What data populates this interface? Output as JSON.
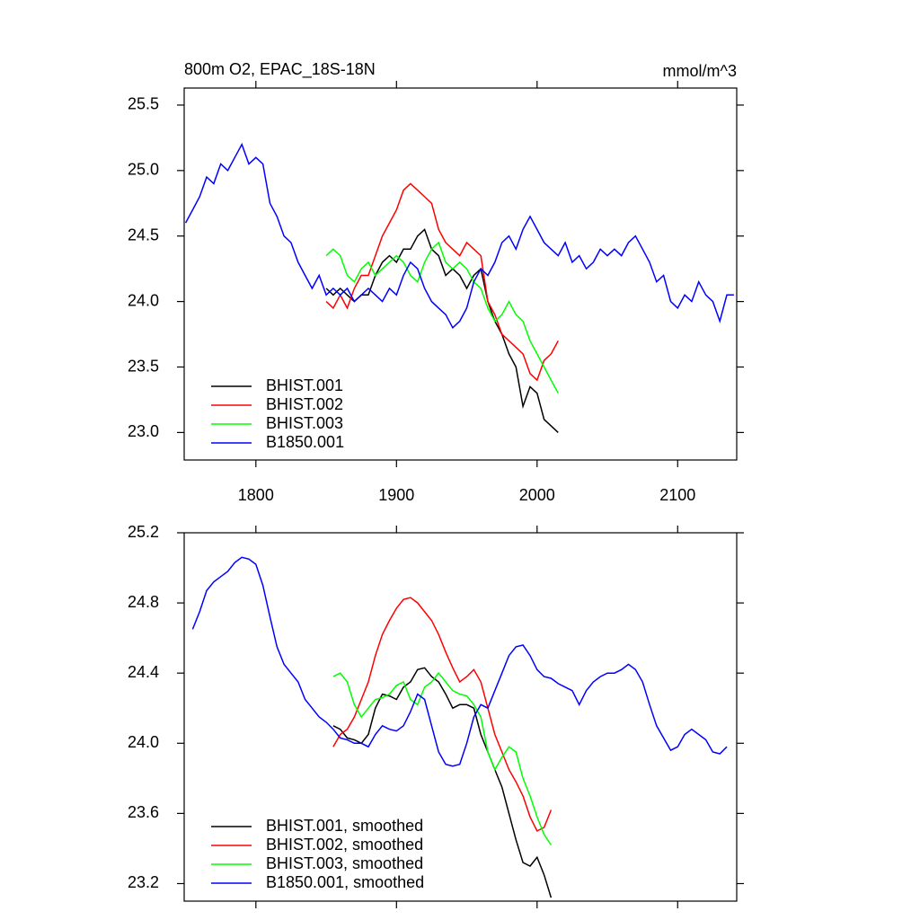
{
  "chart_data": [
    {
      "type": "line",
      "title": "800m O2, EPAC_18S-18N",
      "units_label": "mmol/m^3",
      "xlim": [
        1749,
        2142
      ],
      "xticks": [
        1800,
        1900,
        2000,
        2100
      ],
      "show_xtick_labels": true,
      "ylim": [
        22.79,
        25.63
      ],
      "yticks": [
        25.5,
        {
          "value": 25,
          "label": "25.0"
        },
        24.5,
        {
          "value": 24,
          "label": "24.0"
        },
        23.5,
        {
          "value": 23,
          "label": "23.0"
        }
      ],
      "legend": "lower left",
      "series": [
        {
          "name": "BHIST.001",
          "color": "#000000",
          "x": [
            1850,
            1855,
            1860,
            1865,
            1870,
            1875,
            1880,
            1885,
            1890,
            1895,
            1900,
            1905,
            1910,
            1915,
            1920,
            1925,
            1930,
            1935,
            1940,
            1945,
            1950,
            1955,
            1960,
            1965,
            1970,
            1975,
            1980,
            1985,
            1990,
            1995,
            2000,
            2005,
            2010,
            2015
          ],
          "values": [
            24.1,
            24.05,
            24.1,
            24.05,
            24.0,
            24.05,
            24.05,
            24.2,
            24.3,
            24.35,
            24.3,
            24.4,
            24.4,
            24.5,
            24.55,
            24.4,
            24.35,
            24.2,
            24.25,
            24.2,
            24.1,
            24.2,
            24.25,
            24.0,
            23.85,
            23.75,
            23.6,
            23.5,
            23.2,
            23.35,
            23.3,
            23.1,
            23.05,
            23.0
          ]
        },
        {
          "name": "BHIST.002",
          "color": "#ff0000",
          "x": [
            1850,
            1855,
            1860,
            1865,
            1870,
            1875,
            1880,
            1885,
            1890,
            1895,
            1900,
            1905,
            1910,
            1915,
            1920,
            1925,
            1930,
            1935,
            1940,
            1945,
            1950,
            1955,
            1960,
            1965,
            1970,
            1975,
            1980,
            1985,
            1990,
            1995,
            2000,
            2005,
            2010,
            2015
          ],
          "values": [
            24.0,
            23.95,
            24.05,
            23.95,
            24.1,
            24.2,
            24.2,
            24.35,
            24.5,
            24.6,
            24.7,
            24.85,
            24.9,
            24.85,
            24.8,
            24.75,
            24.55,
            24.45,
            24.4,
            24.35,
            24.45,
            24.4,
            24.35,
            24.0,
            23.9,
            23.75,
            23.7,
            23.65,
            23.6,
            23.45,
            23.4,
            23.55,
            23.6,
            23.7
          ]
        },
        {
          "name": "BHIST.003",
          "color": "#00ff00",
          "x": [
            1850,
            1855,
            1860,
            1865,
            1870,
            1875,
            1880,
            1885,
            1890,
            1895,
            1900,
            1905,
            1910,
            1915,
            1920,
            1925,
            1930,
            1935,
            1940,
            1945,
            1950,
            1955,
            1960,
            1965,
            1970,
            1975,
            1980,
            1985,
            1990,
            1995,
            2000,
            2005,
            2010,
            2015
          ],
          "values": [
            24.35,
            24.4,
            24.35,
            24.2,
            24.15,
            24.25,
            24.3,
            24.2,
            24.25,
            24.3,
            24.35,
            24.3,
            24.2,
            24.15,
            24.3,
            24.4,
            24.45,
            24.3,
            24.25,
            24.3,
            24.25,
            24.15,
            24.1,
            23.95,
            23.85,
            23.9,
            24.0,
            23.9,
            23.85,
            23.7,
            23.6,
            23.5,
            23.4,
            23.3
          ]
        },
        {
          "name": "B1850.001",
          "color": "#0000ff",
          "x": [
            1750,
            1755,
            1760,
            1765,
            1770,
            1775,
            1780,
            1785,
            1790,
            1795,
            1800,
            1805,
            1810,
            1815,
            1820,
            1825,
            1830,
            1835,
            1840,
            1845,
            1850,
            1855,
            1860,
            1865,
            1870,
            1875,
            1880,
            1885,
            1890,
            1895,
            1900,
            1905,
            1910,
            1915,
            1920,
            1925,
            1930,
            1935,
            1940,
            1945,
            1950,
            1955,
            1960,
            1965,
            1970,
            1975,
            1980,
            1985,
            1990,
            1995,
            2000,
            2005,
            2010,
            2015,
            2020,
            2025,
            2030,
            2035,
            2040,
            2045,
            2050,
            2055,
            2060,
            2065,
            2070,
            2075,
            2080,
            2085,
            2090,
            2095,
            2100,
            2105,
            2110,
            2115,
            2120,
            2125,
            2130,
            2135,
            2140
          ],
          "values": [
            24.6,
            24.7,
            24.8,
            24.95,
            24.9,
            25.05,
            25.0,
            25.1,
            25.2,
            25.05,
            25.1,
            25.05,
            24.75,
            24.65,
            24.5,
            24.45,
            24.3,
            24.2,
            24.1,
            24.2,
            24.05,
            24.1,
            24.05,
            24.1,
            24.0,
            24.05,
            24.1,
            24.05,
            24.0,
            24.1,
            24.05,
            24.2,
            24.3,
            24.25,
            24.1,
            24.0,
            23.95,
            23.9,
            23.8,
            23.85,
            23.95,
            24.15,
            24.25,
            24.2,
            24.3,
            24.45,
            24.5,
            24.4,
            24.55,
            24.65,
            24.55,
            24.45,
            24.4,
            24.35,
            24.45,
            24.3,
            24.35,
            24.25,
            24.3,
            24.4,
            24.35,
            24.4,
            24.35,
            24.45,
            24.5,
            24.4,
            24.3,
            24.15,
            24.2,
            24.0,
            23.95,
            24.05,
            24.0,
            24.15,
            24.05,
            24.0,
            23.85,
            24.05,
            24.05
          ]
        }
      ]
    },
    {
      "type": "line",
      "xlim": [
        1749,
        2142
      ],
      "xticks": [
        1800,
        1900,
        2000,
        2100
      ],
      "show_xtick_labels": false,
      "ylim": [
        23.1,
        25.2
      ],
      "yticks": [
        25.2,
        24.8,
        24.4,
        {
          "value": 24,
          "label": "24.0"
        },
        23.6,
        23.2
      ],
      "legend": "lower left",
      "series": [
        {
          "name": "BHIST.001, smoothed",
          "color": "#000000",
          "x": [
            1855,
            1860,
            1865,
            1870,
            1875,
            1880,
            1885,
            1890,
            1895,
            1900,
            1905,
            1910,
            1915,
            1920,
            1925,
            1930,
            1935,
            1940,
            1945,
            1950,
            1955,
            1960,
            1965,
            1970,
            1975,
            1980,
            1985,
            1990,
            1995,
            2000,
            2005,
            2010
          ],
          "values": [
            24.1,
            24.08,
            24.03,
            24.02,
            24.0,
            24.05,
            24.2,
            24.28,
            24.27,
            24.25,
            24.32,
            24.35,
            24.42,
            24.43,
            24.38,
            24.35,
            24.28,
            24.2,
            24.22,
            24.22,
            24.2,
            24.05,
            23.95,
            23.85,
            23.75,
            23.6,
            23.45,
            23.32,
            23.3,
            23.35,
            23.25,
            23.12
          ]
        },
        {
          "name": "BHIST.002, smoothed",
          "color": "#ff0000",
          "x": [
            1855,
            1860,
            1865,
            1870,
            1875,
            1880,
            1885,
            1890,
            1895,
            1900,
            1905,
            1910,
            1915,
            1920,
            1925,
            1930,
            1935,
            1940,
            1945,
            1950,
            1955,
            1960,
            1965,
            1970,
            1975,
            1980,
            1985,
            1990,
            1995,
            2000,
            2005,
            2010
          ],
          "values": [
            23.98,
            24.05,
            24.08,
            24.15,
            24.25,
            24.35,
            24.5,
            24.62,
            24.7,
            24.77,
            24.82,
            24.83,
            24.8,
            24.75,
            24.7,
            24.62,
            24.52,
            24.43,
            24.35,
            24.38,
            24.42,
            24.35,
            24.2,
            24.05,
            23.95,
            23.85,
            23.78,
            23.7,
            23.58,
            23.5,
            23.52,
            23.62
          ]
        },
        {
          "name": "BHIST.003, smoothed",
          "color": "#00ff00",
          "x": [
            1855,
            1860,
            1865,
            1870,
            1875,
            1880,
            1885,
            1890,
            1895,
            1900,
            1905,
            1910,
            1915,
            1920,
            1925,
            1930,
            1935,
            1940,
            1945,
            1950,
            1955,
            1960,
            1965,
            1970,
            1975,
            1980,
            1985,
            1990,
            1995,
            2000,
            2005,
            2010
          ],
          "values": [
            24.38,
            24.4,
            24.35,
            24.22,
            24.15,
            24.2,
            24.25,
            24.26,
            24.28,
            24.33,
            24.35,
            24.25,
            24.22,
            24.32,
            24.35,
            24.4,
            24.35,
            24.3,
            24.28,
            24.27,
            24.22,
            24.15,
            23.95,
            23.85,
            23.92,
            23.98,
            23.95,
            23.8,
            23.7,
            23.58,
            23.48,
            23.42
          ]
        },
        {
          "name": "B1850.001, smoothed",
          "color": "#0000ff",
          "x": [
            1755,
            1760,
            1765,
            1770,
            1775,
            1780,
            1785,
            1790,
            1795,
            1800,
            1805,
            1810,
            1815,
            1820,
            1825,
            1830,
            1835,
            1840,
            1845,
            1850,
            1855,
            1860,
            1865,
            1870,
            1875,
            1880,
            1885,
            1890,
            1895,
            1900,
            1905,
            1910,
            1915,
            1920,
            1925,
            1930,
            1935,
            1940,
            1945,
            1950,
            1955,
            1960,
            1965,
            1970,
            1975,
            1980,
            1985,
            1990,
            1995,
            2000,
            2005,
            2010,
            2015,
            2020,
            2025,
            2030,
            2035,
            2040,
            2045,
            2050,
            2055,
            2060,
            2065,
            2070,
            2075,
            2080,
            2085,
            2090,
            2095,
            2100,
            2105,
            2110,
            2115,
            2120,
            2125,
            2130,
            2135
          ],
          "values": [
            24.65,
            24.75,
            24.87,
            24.92,
            24.95,
            24.98,
            25.03,
            25.06,
            25.05,
            25.02,
            24.9,
            24.72,
            24.55,
            24.45,
            24.4,
            24.35,
            24.25,
            24.2,
            24.15,
            24.12,
            24.08,
            24.03,
            24.02,
            24.0,
            24.0,
            23.98,
            24.05,
            24.1,
            24.08,
            24.07,
            24.1,
            24.18,
            24.28,
            24.25,
            24.1,
            23.95,
            23.88,
            23.87,
            23.88,
            24.0,
            24.15,
            24.22,
            24.2,
            24.3,
            24.4,
            24.5,
            24.55,
            24.56,
            24.5,
            24.42,
            24.38,
            24.37,
            24.34,
            24.32,
            24.3,
            24.22,
            24.3,
            24.35,
            24.38,
            24.4,
            24.4,
            24.42,
            24.45,
            24.42,
            24.35,
            24.22,
            24.1,
            24.03,
            23.96,
            23.98,
            24.05,
            24.08,
            24.05,
            24.02,
            23.95,
            23.94,
            23.98
          ]
        }
      ]
    }
  ]
}
